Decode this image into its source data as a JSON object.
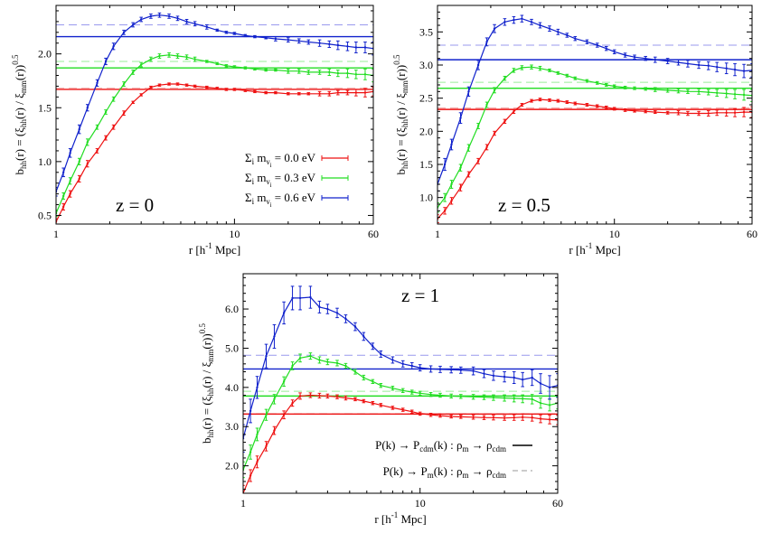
{
  "colors": {
    "red": "#ee1111",
    "green": "#22dd22",
    "blue": "#1122cc",
    "dashed_blue": "#9999ee",
    "dashed_green": "#99ee99",
    "dashed_red": "#f09a9a"
  },
  "chart_data": [
    {
      "type": "line",
      "annotation": "z = 0",
      "xlabel": "r [h⁻¹ Mpc]",
      "ylabel": "b_hh(r) = (ξ_hh(r) / ξ_mm(r))^0.5",
      "xscale": "log",
      "xlim": [
        1,
        60
      ],
      "ylim": [
        0.42,
        2.45
      ],
      "xticks": [
        "1",
        "10",
        "60"
      ],
      "yticks": [
        "0.5",
        "1.0",
        "1.5",
        "2.0"
      ],
      "legend": {
        "placement": "center-right",
        "entries": [
          "Σi mνi = 0.0 eV",
          "Σi mνi = 0.3 eV",
          "Σi mνi = 0.6 eV"
        ]
      },
      "x": [
        1.0,
        1.1,
        1.2,
        1.35,
        1.5,
        1.7,
        1.9,
        2.1,
        2.4,
        2.7,
        3.0,
        3.4,
        3.8,
        4.3,
        4.8,
        5.4,
        6.0,
        7.0,
        8.0,
        9.0,
        10.0,
        11.5,
        13.0,
        15.0,
        17.0,
        20.0,
        23.0,
        26.0,
        30.0,
        34.0,
        38.0,
        43.0,
        48.0,
        54.0,
        60.0
      ],
      "series": [
        {
          "name": "Σi mνi = 0.0 eV",
          "color": "red",
          "values": [
            0.44,
            0.58,
            0.7,
            0.84,
            0.98,
            1.1,
            1.22,
            1.32,
            1.45,
            1.55,
            1.62,
            1.69,
            1.71,
            1.72,
            1.72,
            1.71,
            1.7,
            1.69,
            1.68,
            1.67,
            1.67,
            1.66,
            1.65,
            1.64,
            1.64,
            1.63,
            1.63,
            1.63,
            1.63,
            1.63,
            1.64,
            1.64,
            1.64,
            1.64,
            1.65
          ],
          "errors": [
            0.03,
            0.03,
            0.03,
            0.03,
            0.03,
            0.02,
            0.02,
            0.02,
            0.02,
            0.01,
            0.01,
            0.01,
            0.01,
            0.01,
            0.01,
            0.01,
            0.01,
            0.01,
            0.01,
            0.01,
            0.01,
            0.01,
            0.01,
            0.01,
            0.01,
            0.01,
            0.01,
            0.01,
            0.02,
            0.02,
            0.02,
            0.02,
            0.03,
            0.04,
            0.04
          ]
        },
        {
          "name": "Σi mνi = 0.3 eV",
          "color": "green",
          "values": [
            0.52,
            0.68,
            0.82,
            1.0,
            1.18,
            1.32,
            1.46,
            1.58,
            1.72,
            1.83,
            1.9,
            1.95,
            1.98,
            1.99,
            1.98,
            1.97,
            1.95,
            1.93,
            1.91,
            1.89,
            1.88,
            1.87,
            1.86,
            1.85,
            1.85,
            1.84,
            1.84,
            1.83,
            1.83,
            1.83,
            1.82,
            1.82,
            1.81,
            1.81,
            1.8
          ],
          "errors": [
            0.03,
            0.03,
            0.03,
            0.03,
            0.03,
            0.02,
            0.02,
            0.02,
            0.02,
            0.02,
            0.02,
            0.02,
            0.02,
            0.02,
            0.02,
            0.02,
            0.02,
            0.01,
            0.01,
            0.01,
            0.01,
            0.01,
            0.01,
            0.01,
            0.01,
            0.02,
            0.02,
            0.02,
            0.02,
            0.03,
            0.03,
            0.04,
            0.04,
            0.05,
            0.06
          ]
        },
        {
          "name": "Σi mνi = 0.6 eV",
          "color": "blue",
          "values": [
            0.72,
            0.9,
            1.08,
            1.3,
            1.5,
            1.73,
            1.93,
            2.07,
            2.2,
            2.27,
            2.32,
            2.35,
            2.36,
            2.35,
            2.33,
            2.3,
            2.28,
            2.25,
            2.22,
            2.2,
            2.19,
            2.17,
            2.16,
            2.15,
            2.14,
            2.13,
            2.12,
            2.11,
            2.1,
            2.09,
            2.08,
            2.07,
            2.06,
            2.06,
            2.05
          ],
          "errors": [
            0.04,
            0.04,
            0.04,
            0.04,
            0.03,
            0.03,
            0.03,
            0.03,
            0.02,
            0.02,
            0.02,
            0.02,
            0.02,
            0.02,
            0.02,
            0.02,
            0.02,
            0.02,
            0.01,
            0.01,
            0.01,
            0.01,
            0.01,
            0.01,
            0.02,
            0.02,
            0.02,
            0.02,
            0.03,
            0.03,
            0.04,
            0.04,
            0.05,
            0.05,
            0.06
          ]
        }
      ],
      "hlines": [
        {
          "color": "red",
          "style": "solid",
          "y": 1.67
        },
        {
          "color": "green",
          "style": "solid",
          "y": 1.87
        },
        {
          "color": "blue",
          "style": "solid",
          "y": 2.16
        },
        {
          "color": "red",
          "style": "dashed",
          "y": 1.68
        },
        {
          "color": "green",
          "style": "dashed",
          "y": 1.93
        },
        {
          "color": "blue",
          "style": "dashed",
          "y": 2.27
        }
      ]
    },
    {
      "type": "line",
      "annotation": "z = 0.5",
      "xlabel": "r [h⁻¹ Mpc]",
      "ylabel": "b_hh(r) = (ξ_hh(r) / ξ_mm(r))^0.5",
      "xscale": "log",
      "xlim": [
        1,
        60
      ],
      "ylim": [
        0.6,
        3.9
      ],
      "xticks": [
        "1",
        "10",
        "60"
      ],
      "yticks": [
        "1.0",
        "1.5",
        "2.0",
        "2.5",
        "3.0",
        "3.5"
      ],
      "x": [
        1.0,
        1.1,
        1.2,
        1.35,
        1.5,
        1.7,
        1.9,
        2.1,
        2.4,
        2.7,
        3.0,
        3.4,
        3.8,
        4.3,
        4.8,
        5.4,
        6.0,
        7.0,
        8.0,
        9.0,
        10.0,
        11.5,
        13.0,
        15.0,
        17.0,
        20.0,
        23.0,
        26.0,
        30.0,
        34.0,
        38.0,
        43.0,
        48.0,
        54.0,
        60.0
      ],
      "series": [
        {
          "name": "",
          "color": "red",
          "values": [
            0.68,
            0.8,
            0.95,
            1.15,
            1.35,
            1.55,
            1.76,
            1.97,
            2.15,
            2.3,
            2.4,
            2.46,
            2.48,
            2.47,
            2.46,
            2.44,
            2.42,
            2.4,
            2.38,
            2.36,
            2.34,
            2.32,
            2.31,
            2.3,
            2.29,
            2.28,
            2.28,
            2.27,
            2.27,
            2.27,
            2.28,
            2.28,
            2.28,
            2.29,
            2.29
          ],
          "errors": [
            0.06,
            0.05,
            0.05,
            0.05,
            0.04,
            0.04,
            0.04,
            0.03,
            0.03,
            0.03,
            0.02,
            0.02,
            0.02,
            0.02,
            0.02,
            0.02,
            0.02,
            0.02,
            0.02,
            0.02,
            0.02,
            0.02,
            0.02,
            0.02,
            0.02,
            0.02,
            0.03,
            0.03,
            0.03,
            0.04,
            0.04,
            0.05,
            0.06,
            0.07,
            0.08
          ]
        },
        {
          "name": "",
          "color": "green",
          "values": [
            0.85,
            1.0,
            1.2,
            1.45,
            1.75,
            2.08,
            2.4,
            2.62,
            2.8,
            2.92,
            2.96,
            2.97,
            2.95,
            2.92,
            2.88,
            2.84,
            2.8,
            2.76,
            2.73,
            2.7,
            2.68,
            2.66,
            2.65,
            2.64,
            2.63,
            2.62,
            2.61,
            2.6,
            2.6,
            2.59,
            2.58,
            2.57,
            2.56,
            2.55,
            2.54
          ],
          "errors": [
            0.07,
            0.06,
            0.06,
            0.05,
            0.05,
            0.04,
            0.04,
            0.04,
            0.03,
            0.03,
            0.03,
            0.03,
            0.03,
            0.02,
            0.02,
            0.02,
            0.02,
            0.02,
            0.02,
            0.02,
            0.02,
            0.02,
            0.02,
            0.02,
            0.03,
            0.03,
            0.03,
            0.03,
            0.04,
            0.04,
            0.05,
            0.06,
            0.07,
            0.08,
            0.09
          ]
        },
        {
          "name": "",
          "color": "blue",
          "values": [
            1.2,
            1.5,
            1.8,
            2.2,
            2.6,
            3.0,
            3.35,
            3.55,
            3.65,
            3.68,
            3.7,
            3.65,
            3.6,
            3.55,
            3.5,
            3.45,
            3.4,
            3.35,
            3.3,
            3.25,
            3.2,
            3.15,
            3.12,
            3.1,
            3.08,
            3.06,
            3.04,
            3.02,
            3.0,
            2.99,
            2.97,
            2.95,
            2.93,
            2.91,
            2.92
          ],
          "errors": [
            0.1,
            0.09,
            0.08,
            0.08,
            0.07,
            0.07,
            0.06,
            0.06,
            0.05,
            0.05,
            0.05,
            0.04,
            0.04,
            0.04,
            0.04,
            0.03,
            0.03,
            0.03,
            0.03,
            0.03,
            0.03,
            0.03,
            0.03,
            0.03,
            0.04,
            0.04,
            0.04,
            0.05,
            0.05,
            0.06,
            0.07,
            0.08,
            0.09,
            0.1,
            0.1
          ]
        }
      ],
      "hlines": [
        {
          "color": "red",
          "style": "solid",
          "y": 2.33
        },
        {
          "color": "green",
          "style": "solid",
          "y": 2.65
        },
        {
          "color": "blue",
          "style": "solid",
          "y": 3.08
        },
        {
          "color": "red",
          "style": "dashed",
          "y": 2.35
        },
        {
          "color": "green",
          "style": "dashed",
          "y": 2.74
        },
        {
          "color": "blue",
          "style": "dashed",
          "y": 3.3
        }
      ]
    },
    {
      "type": "line",
      "annotation": "z = 1",
      "xlabel": "r [h⁻¹ Mpc]",
      "ylabel": "b_hh(r) = (ξ_hh(r) / ξ_mm(r))^0.5",
      "xscale": "log",
      "xlim": [
        1,
        60
      ],
      "ylim": [
        1.3,
        6.9
      ],
      "xticks": [
        "1",
        "10",
        "60"
      ],
      "yticks": [
        "2.0",
        "3.0",
        "4.0",
        "5.0",
        "6.0"
      ],
      "legend": {
        "placement": "bottom-right",
        "entries": [
          "P(k) → Pcdm(k) : ρm → ρcdm",
          "P(k) →  Pm(k) : ρm → ρcdm"
        ]
      },
      "x": [
        1.0,
        1.1,
        1.2,
        1.35,
        1.5,
        1.7,
        1.9,
        2.1,
        2.4,
        2.7,
        3.0,
        3.4,
        3.8,
        4.3,
        4.8,
        5.4,
        6.0,
        7.0,
        8.0,
        9.0,
        10.0,
        11.5,
        13.0,
        15.0,
        17.0,
        20.0,
        23.0,
        26.0,
        30.0,
        34.0,
        38.0,
        43.0,
        48.0,
        54.0,
        60.0
      ],
      "series": [
        {
          "name": "",
          "color": "red",
          "values": [
            1.3,
            1.75,
            2.1,
            2.5,
            2.9,
            3.3,
            3.6,
            3.78,
            3.8,
            3.79,
            3.78,
            3.76,
            3.73,
            3.7,
            3.65,
            3.6,
            3.55,
            3.48,
            3.43,
            3.38,
            3.33,
            3.3,
            3.28,
            3.26,
            3.25,
            3.24,
            3.23,
            3.23,
            3.22,
            3.23,
            3.24,
            3.23,
            3.2,
            3.18,
            3.17
          ],
          "errors": [
            0.2,
            0.15,
            0.15,
            0.12,
            0.1,
            0.1,
            0.08,
            0.08,
            0.06,
            0.06,
            0.05,
            0.05,
            0.05,
            0.04,
            0.04,
            0.04,
            0.04,
            0.04,
            0.04,
            0.04,
            0.04,
            0.04,
            0.04,
            0.04,
            0.04,
            0.05,
            0.05,
            0.06,
            0.06,
            0.07,
            0.08,
            0.09,
            0.1,
            0.11,
            0.12
          ]
        },
        {
          "name": "",
          "color": "green",
          "values": [
            1.9,
            2.35,
            2.8,
            3.3,
            3.7,
            4.15,
            4.55,
            4.75,
            4.8,
            4.7,
            4.65,
            4.62,
            4.55,
            4.4,
            4.25,
            4.15,
            4.05,
            3.98,
            3.92,
            3.88,
            3.85,
            3.82,
            3.8,
            3.78,
            3.77,
            3.76,
            3.75,
            3.74,
            3.73,
            3.72,
            3.71,
            3.7,
            3.6,
            3.55,
            3.6
          ],
          "errors": [
            0.2,
            0.18,
            0.16,
            0.14,
            0.12,
            0.12,
            0.1,
            0.1,
            0.08,
            0.08,
            0.07,
            0.07,
            0.06,
            0.06,
            0.06,
            0.05,
            0.05,
            0.05,
            0.05,
            0.05,
            0.05,
            0.05,
            0.05,
            0.05,
            0.05,
            0.06,
            0.06,
            0.07,
            0.08,
            0.09,
            0.1,
            0.12,
            0.13,
            0.15,
            0.15
          ]
        },
        {
          "name": "",
          "color": "blue",
          "values": [
            2.7,
            3.4,
            4.0,
            4.8,
            5.3,
            5.9,
            6.28,
            6.28,
            6.3,
            6.05,
            6.0,
            5.9,
            5.75,
            5.55,
            5.3,
            5.05,
            4.85,
            4.7,
            4.6,
            4.55,
            4.5,
            4.47,
            4.46,
            4.45,
            4.44,
            4.42,
            4.35,
            4.3,
            4.27,
            4.25,
            4.2,
            4.25,
            4.1,
            4.0,
            4.05
          ],
          "errors": [
            0.35,
            0.3,
            0.28,
            0.3,
            0.3,
            0.28,
            0.3,
            0.3,
            0.28,
            0.15,
            0.12,
            0.12,
            0.1,
            0.1,
            0.1,
            0.08,
            0.08,
            0.08,
            0.08,
            0.08,
            0.08,
            0.08,
            0.08,
            0.08,
            0.08,
            0.1,
            0.1,
            0.12,
            0.13,
            0.15,
            0.18,
            0.2,
            0.25,
            0.3,
            0.3
          ]
        }
      ],
      "hlines": [
        {
          "color": "red",
          "style": "solid",
          "y": 3.32
        },
        {
          "color": "green",
          "style": "solid",
          "y": 3.78
        },
        {
          "color": "blue",
          "style": "solid",
          "y": 4.47
        },
        {
          "color": "red",
          "style": "dashed",
          "y": 3.34
        },
        {
          "color": "green",
          "style": "dashed",
          "y": 3.9
        },
        {
          "color": "blue",
          "style": "dashed",
          "y": 4.82
        }
      ]
    }
  ]
}
